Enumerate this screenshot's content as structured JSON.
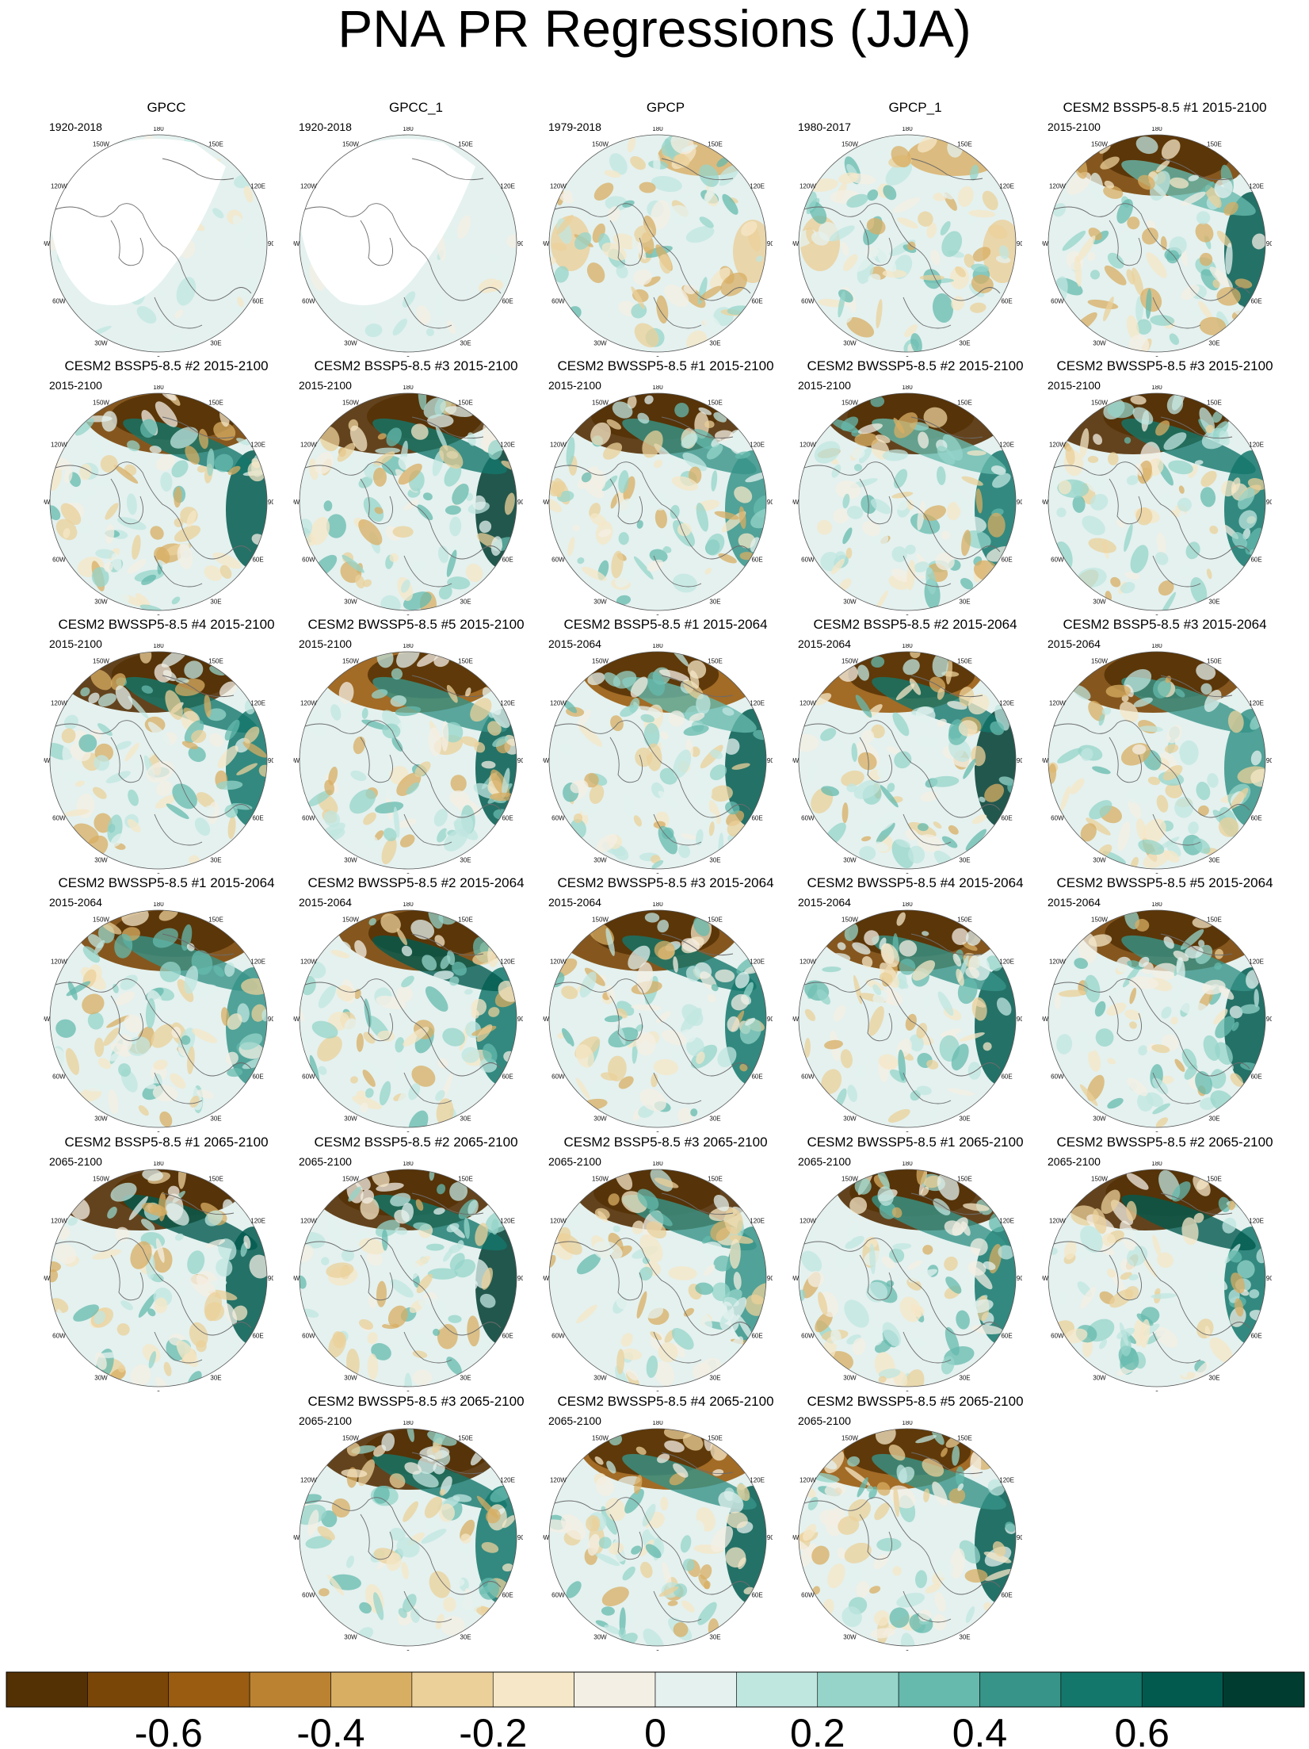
{
  "figure_title": "PNA PR Regressions (JJA)",
  "longitude_labels": [
    "180",
    "150E",
    "120E",
    "90E",
    "60E",
    "30E",
    "0",
    "30W",
    "60W",
    "90W",
    "120W",
    "150W"
  ],
  "panels": [
    {
      "title": "GPCC",
      "period": "1920-2018",
      "pattern": "obs_gpcc"
    },
    {
      "title": "GPCC_1",
      "period": "1920-2018",
      "pattern": "obs_gpcc"
    },
    {
      "title": "GPCP",
      "period": "1979-2018",
      "pattern": "obs_gpcp"
    },
    {
      "title": "GPCP_1",
      "period": "1980-2017",
      "pattern": "obs_gpcp"
    },
    {
      "title": "CESM2 BSSP5-8.5 #1 2015-2100",
      "period": "2015-2100",
      "pattern": "model"
    },
    {
      "title": "CESM2 BSSP5-8.5 #2 2015-2100",
      "period": "2015-2100",
      "pattern": "model"
    },
    {
      "title": "CESM2 BSSP5-8.5 #3 2015-2100",
      "period": "2015-2100",
      "pattern": "model"
    },
    {
      "title": "CESM2 BWSSP5-8.5 #1 2015-2100",
      "period": "2015-2100",
      "pattern": "model"
    },
    {
      "title": "CESM2 BWSSP5-8.5 #2 2015-2100",
      "period": "2015-2100",
      "pattern": "model"
    },
    {
      "title": "CESM2 BWSSP5-8.5 #3 2015-2100",
      "period": "2015-2100",
      "pattern": "model"
    },
    {
      "title": "CESM2 BWSSP5-8.5 #4 2015-2100",
      "period": "2015-2100",
      "pattern": "model"
    },
    {
      "title": "CESM2 BWSSP5-8.5 #5 2015-2100",
      "period": "2015-2100",
      "pattern": "model"
    },
    {
      "title": "CESM2 BSSP5-8.5 #1 2015-2064",
      "period": "2015-2064",
      "pattern": "model"
    },
    {
      "title": "CESM2 BSSP5-8.5 #2 2015-2064",
      "period": "2015-2064",
      "pattern": "model"
    },
    {
      "title": "CESM2 BSSP5-8.5 #3 2015-2064",
      "period": "2015-2064",
      "pattern": "model"
    },
    {
      "title": "CESM2 BWSSP5-8.5 #1 2015-2064",
      "period": "2015-2064",
      "pattern": "model"
    },
    {
      "title": "CESM2 BWSSP5-8.5 #2 2015-2064",
      "period": "2015-2064",
      "pattern": "model"
    },
    {
      "title": "CESM2 BWSSP5-8.5 #3 2015-2064",
      "period": "2015-2064",
      "pattern": "model"
    },
    {
      "title": "CESM2 BWSSP5-8.5 #4 2015-2064",
      "period": "2015-2064",
      "pattern": "model"
    },
    {
      "title": "CESM2 BWSSP5-8.5 #5 2015-2064",
      "period": "2015-2064",
      "pattern": "model"
    },
    {
      "title": "CESM2 BSSP5-8.5 #1 2065-2100",
      "period": "2065-2100",
      "pattern": "model"
    },
    {
      "title": "CESM2 BSSP5-8.5 #2 2065-2100",
      "period": "2065-2100",
      "pattern": "model"
    },
    {
      "title": "CESM2 BSSP5-8.5 #3 2065-2100",
      "period": "2065-2100",
      "pattern": "model"
    },
    {
      "title": "CESM2 BWSSP5-8.5 #1 2065-2100",
      "period": "2065-2100",
      "pattern": "model"
    },
    {
      "title": "CESM2 BWSSP5-8.5 #2 2065-2100",
      "period": "2065-2100",
      "pattern": "model"
    },
    {
      "title": "CESM2 BWSSP5-8.5 #3 2065-2100",
      "period": "2065-2100",
      "pattern": "model"
    },
    {
      "title": "CESM2 BWSSP5-8.5 #4 2065-2100",
      "period": "2065-2100",
      "pattern": "model"
    },
    {
      "title": "CESM2 BWSSP5-8.5 #5 2065-2100",
      "period": "2065-2100",
      "pattern": "model"
    }
  ],
  "chart_data": {
    "type": "heatmap",
    "title": "PNA PR Regressions (JJA)",
    "colorbar": {
      "bounds": [
        -0.8,
        0.8
      ],
      "levels": [
        -0.7,
        -0.6,
        -0.5,
        -0.4,
        -0.3,
        -0.2,
        -0.1,
        0,
        0.1,
        0.2,
        0.3,
        0.4,
        0.5,
        0.6,
        0.7
      ],
      "colors": [
        "#543005",
        "#7a4608",
        "#9a5c10",
        "#bb8231",
        "#d8ae63",
        "#ebd09a",
        "#f5e7c7",
        "#f4efe4",
        "#e4f1ef",
        "#c0e6e0",
        "#96d4c9",
        "#66b9ad",
        "#379488",
        "#14776b",
        "#025a4f",
        "#003c30"
      ],
      "tick_values": [
        -0.6,
        -0.4,
        -0.2,
        0,
        0.2,
        0.4,
        0.6
      ],
      "tick_labels": [
        "-0.6",
        "-0.4",
        "-0.2",
        "0",
        "0.2",
        "0.4",
        "0.6"
      ]
    }
  }
}
